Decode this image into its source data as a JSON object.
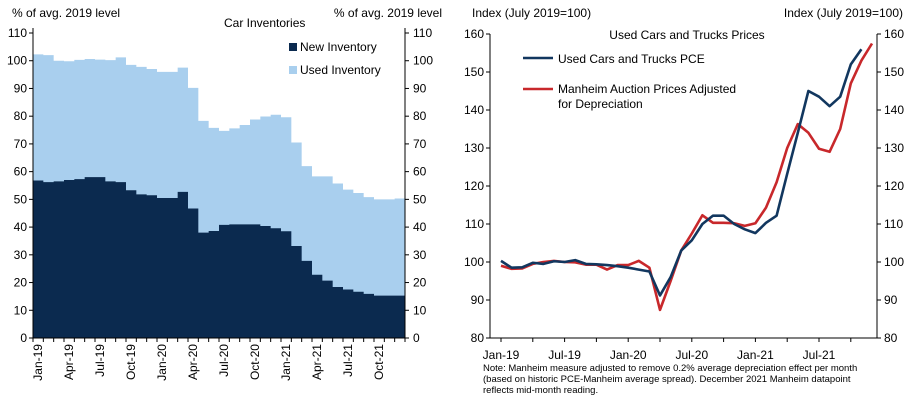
{
  "colors": {
    "new_inventory": "#0b2a4f",
    "used_inventory": "#a9cfee",
    "pce_line": "#12375f",
    "manheim_line": "#c8282b"
  },
  "chart_data": [
    {
      "type": "area",
      "title": "Car Inventories",
      "ylabel_left": "% of avg. 2019 level",
      "ylabel_right": "% of avg. 2019 level",
      "ylim": [
        0,
        110
      ],
      "yticks": [
        0,
        10,
        20,
        30,
        40,
        50,
        60,
        70,
        80,
        90,
        100,
        110
      ],
      "grid": false,
      "legend_position": "top-right",
      "categories": [
        "Jan-19",
        "Feb-19",
        "Mar-19",
        "Apr-19",
        "May-19",
        "Jun-19",
        "Jul-19",
        "Aug-19",
        "Sep-19",
        "Oct-19",
        "Nov-19",
        "Dec-19",
        "Jan-20",
        "Feb-20",
        "Mar-20",
        "Apr-20",
        "May-20",
        "Jun-20",
        "Jul-20",
        "Aug-20",
        "Sep-20",
        "Oct-20",
        "Nov-20",
        "Dec-20",
        "Jan-21",
        "Feb-21",
        "Mar-21",
        "Apr-21",
        "May-21",
        "Jun-21",
        "Jul-21",
        "Aug-21",
        "Sep-21",
        "Oct-21",
        "Nov-21",
        "Dec-21"
      ],
      "xtick_labels": [
        "Jan-19",
        "Apr-19",
        "Jul-19",
        "Oct-19",
        "Jan-20",
        "Apr-20",
        "Jul-20",
        "Oct-20",
        "Jan-21",
        "Apr-21",
        "Jul-21",
        "Oct-21"
      ],
      "xtick_index": [
        0,
        3,
        6,
        9,
        12,
        15,
        18,
        21,
        24,
        27,
        30,
        33
      ],
      "series": [
        {
          "name": "New Inventory",
          "values": [
            56.8,
            56.2,
            56.5,
            57.0,
            57.3,
            58.0,
            58.0,
            56.5,
            56.2,
            53.3,
            51.8,
            51.5,
            50.5,
            50.5,
            52.7,
            46.7,
            38.0,
            38.6,
            40.8,
            41.0,
            41.0,
            41.0,
            40.4,
            39.6,
            38.5,
            33.2,
            27.8,
            22.8,
            20.7,
            18.4,
            17.5,
            16.7,
            15.9,
            15.3,
            15.3,
            15.3
          ]
        },
        {
          "name": "Used Inventory",
          "values": [
            102.3,
            102.0,
            100.0,
            99.8,
            100.3,
            100.6,
            100.4,
            100.2,
            101.2,
            98.5,
            97.8,
            97.0,
            96.0,
            96.0,
            97.5,
            90.2,
            78.3,
            75.8,
            74.7,
            75.6,
            76.8,
            78.8,
            79.9,
            80.5,
            79.6,
            70.5,
            62.0,
            58.3,
            58.3,
            55.7,
            53.5,
            52.3,
            50.8,
            50.0,
            50.0,
            50.3
          ]
        }
      ]
    },
    {
      "type": "line",
      "title": "Used Cars and Trucks Prices",
      "ylabel_left": "Index (July 2019=100)",
      "ylabel_right": "Index (July 2019=100)",
      "ylim": [
        80,
        160
      ],
      "yticks": [
        80,
        90,
        100,
        110,
        120,
        130,
        140,
        150,
        160
      ],
      "grid": false,
      "legend_position": "top-left",
      "xtick_labels": [
        "Jan-19",
        "Jul-19",
        "Jan-20",
        "Jul-20",
        "Jan-21",
        "Jul-21"
      ],
      "xtick_index": [
        0,
        6,
        12,
        18,
        24,
        30
      ],
      "series": [
        {
          "name": "Used Cars and Trucks PCE",
          "values": [
            100.3,
            98.5,
            98.6,
            99.8,
            99.5,
            100.2,
            100.0,
            100.5,
            99.5,
            99.4,
            99.2,
            98.9,
            98.5,
            98.0,
            97.5,
            91.2,
            96.0,
            103.0,
            105.7,
            110.0,
            112.2,
            112.2,
            110.0,
            108.6,
            107.6,
            110.3,
            112.2,
            123.2,
            134.0,
            145.0,
            143.5,
            141.0,
            143.5,
            152.0,
            156.0
          ]
        },
        {
          "name": "Manheim Auction Prices Adjusted for Depreciation",
          "values": [
            99.0,
            98.2,
            98.3,
            99.5,
            100.0,
            100.3,
            100.0,
            99.9,
            99.3,
            99.3,
            98.0,
            99.2,
            99.2,
            100.3,
            98.5,
            87.4,
            95.0,
            103.0,
            107.5,
            112.3,
            110.3,
            110.3,
            110.2,
            109.5,
            110.2,
            114.3,
            121.0,
            130.0,
            136.3,
            134.0,
            129.8,
            129.0,
            135.0,
            147.0,
            153.0,
            157.5
          ]
        }
      ],
      "legend_lines": [
        [
          "Used Cars and Trucks PCE"
        ],
        [
          "Manheim Auction Prices Adjusted",
          "for Depreciation"
        ]
      ]
    }
  ],
  "note": {
    "lines": [
      "Note: Manheim  measure adjusted to remove 0.2%  average depreciation effect per month",
      "(based on historic PCE-Manheim   average spread). December 2021 Manheim  datapoint",
      "reflects mid-month reading."
    ]
  }
}
